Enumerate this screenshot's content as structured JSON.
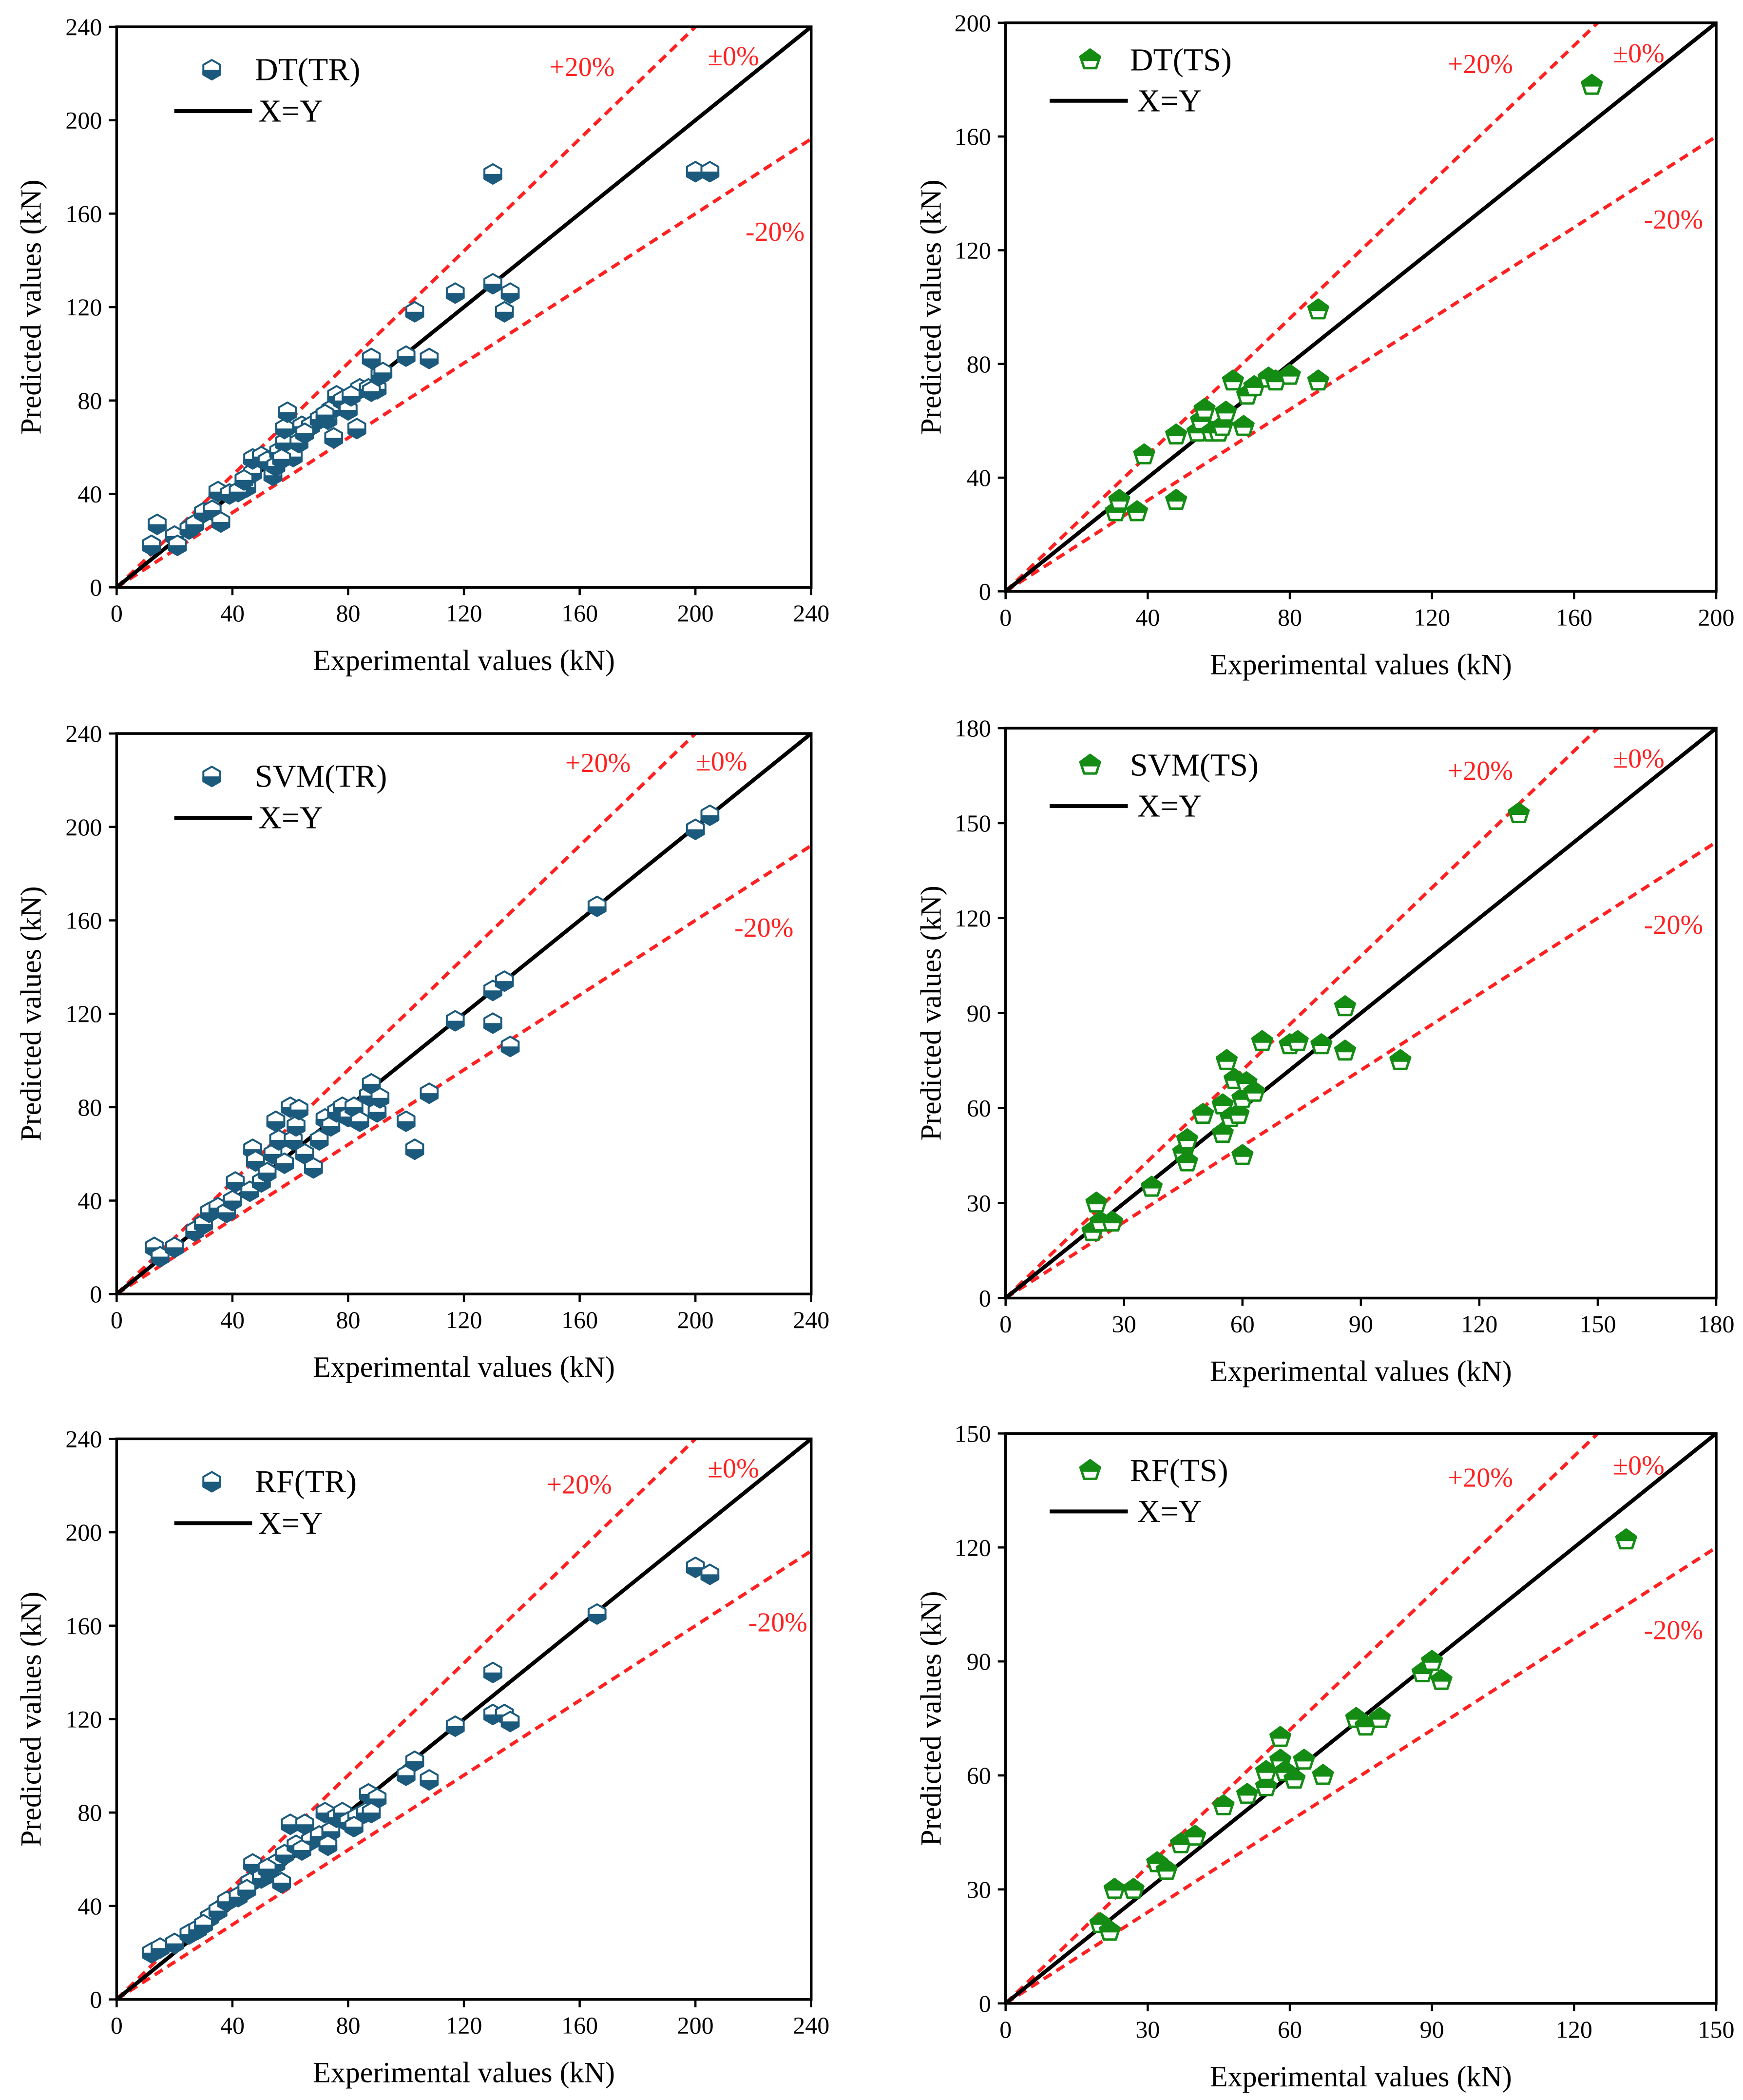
{
  "chart_data": [
    {
      "type": "scatter",
      "series": [
        {
          "name": "DT(TR)",
          "marker": "half-filled-hexagon",
          "color": "#1c5a7d",
          "x": [
            12,
            14,
            20,
            21,
            25,
            27,
            30,
            33,
            35,
            36,
            39,
            45,
            47,
            47,
            50,
            52,
            54,
            56,
            58,
            58,
            59,
            61,
            63,
            64,
            67,
            70,
            73,
            74,
            75,
            76,
            78,
            80,
            83,
            84,
            87,
            88,
            90,
            91,
            100,
            103,
            108,
            117,
            130,
            130,
            134,
            136,
            200,
            205,
            42,
            44,
            55,
            57,
            65,
            72,
            81,
            88,
            92
          ],
          "y": [
            18,
            27,
            22,
            18,
            25,
            27,
            32,
            33,
            41,
            28,
            40,
            43,
            49,
            55,
            56,
            54,
            48,
            58,
            62,
            68,
            75,
            56,
            62,
            69,
            69,
            72,
            72,
            76,
            64,
            82,
            80,
            76,
            68,
            85,
            85,
            98,
            85,
            91,
            99,
            118,
            98,
            126,
            177,
            130,
            118,
            126,
            178,
            178,
            41,
            46,
            52,
            55,
            66,
            74,
            82,
            84,
            92
          ]
        }
      ],
      "reference_lines": [
        {
          "label": "+20%",
          "slope": 1.2,
          "color": "#ff2121",
          "style": "dashed"
        },
        {
          "label": "±0%",
          "slope": 1.0,
          "color": "#ff2121",
          "style": "dashed"
        },
        {
          "label": "-20%",
          "slope": 0.8,
          "color": "#ff2121",
          "style": "dashed"
        }
      ],
      "identity_line": {
        "label": "X=Y",
        "slope": 1.0,
        "color": "#000000",
        "style": "solid"
      },
      "xlabel": "Experimental values (kN)",
      "ylabel": "Predicted values (kN)",
      "xlim": [
        0,
        240
      ],
      "ylim": [
        0,
        240
      ],
      "xticks": [
        0,
        40,
        80,
        120,
        160,
        200,
        240
      ],
      "yticks": [
        0,
        40,
        80,
        120,
        160,
        200,
        240
      ],
      "grid": false,
      "legend": "top-left"
    },
    {
      "type": "scatter",
      "series": [
        {
          "name": "DT(TS)",
          "marker": "half-filled-pentagon",
          "color": "#148c14",
          "x": [
            31,
            32,
            37,
            39,
            48,
            48,
            54,
            55,
            56,
            58,
            60,
            61,
            62,
            64,
            67,
            68,
            70,
            74,
            76,
            80,
            88,
            88,
            165
          ],
          "y": [
            28,
            32,
            28,
            48,
            32,
            55,
            56,
            60,
            64,
            56,
            56,
            58,
            63,
            74,
            58,
            69,
            72,
            75,
            74,
            76,
            99,
            74,
            178
          ]
        }
      ],
      "reference_lines": [
        {
          "label": "+20%",
          "slope": 1.2,
          "color": "#ff2121",
          "style": "dashed"
        },
        {
          "label": "±0%",
          "slope": 1.0,
          "color": "#ff2121",
          "style": "dashed"
        },
        {
          "label": "-20%",
          "slope": 0.8,
          "color": "#ff2121",
          "style": "dashed"
        }
      ],
      "identity_line": {
        "label": "X=Y",
        "slope": 1.0,
        "color": "#000000",
        "style": "solid"
      },
      "xlabel": "Experimental values (kN)",
      "ylabel": "Predicted values (kN)",
      "xlim": [
        0,
        200
      ],
      "ylim": [
        0,
        200
      ],
      "xticks": [
        0,
        40,
        80,
        120,
        160,
        200
      ],
      "yticks": [
        0,
        40,
        80,
        120,
        160,
        200
      ],
      "grid": false,
      "legend": "top-left"
    },
    {
      "type": "scatter",
      "series": [
        {
          "name": "SVM(TR)",
          "marker": "half-filled-hexagon",
          "color": "#1c5a7d",
          "x": [
            13,
            15,
            20,
            27,
            30,
            32,
            35,
            38,
            40,
            41,
            46,
            47,
            48,
            50,
            52,
            54,
            55,
            56,
            58,
            60,
            61,
            62,
            63,
            65,
            68,
            70,
            72,
            74,
            76,
            78,
            80,
            82,
            84,
            87,
            88,
            90,
            91,
            100,
            103,
            108,
            117,
            130,
            130,
            134,
            136,
            166,
            200,
            205
          ],
          "y": [
            20,
            16,
            20,
            27,
            30,
            35,
            37,
            35,
            40,
            48,
            44,
            62,
            57,
            48,
            52,
            60,
            74,
            66,
            56,
            80,
            66,
            72,
            79,
            60,
            54,
            66,
            75,
            72,
            78,
            80,
            76,
            80,
            74,
            85,
            90,
            78,
            84,
            74,
            62,
            86,
            117,
            130,
            116,
            134,
            106,
            166,
            199,
            205
          ]
        }
      ],
      "reference_lines": [
        {
          "label": "+20%",
          "slope": 1.2,
          "color": "#ff2121",
          "style": "dashed"
        },
        {
          "label": "±0%",
          "slope": 1.0,
          "color": "#ff2121",
          "style": "dashed"
        },
        {
          "label": "-20%",
          "slope": 0.8,
          "color": "#ff2121",
          "style": "dashed"
        }
      ],
      "identity_line": {
        "label": "X=Y",
        "slope": 1.0,
        "color": "#000000",
        "style": "solid"
      },
      "xlabel": "Experimental values (kN)",
      "ylabel": "Predicted values (kN)",
      "xlim": [
        0,
        240
      ],
      "ylim": [
        0,
        240
      ],
      "xticks": [
        0,
        40,
        80,
        120,
        160,
        200,
        240
      ],
      "yticks": [
        0,
        40,
        80,
        120,
        160,
        200,
        240
      ],
      "grid": false,
      "legend": "top-left"
    },
    {
      "type": "scatter",
      "series": [
        {
          "name": "SVM(TS)",
          "marker": "half-filled-pentagon",
          "color": "#148c14",
          "x": [
            22,
            23,
            24,
            27,
            37,
            45,
            46,
            46,
            50,
            55,
            55,
            56,
            57,
            58,
            59,
            60,
            60,
            61,
            63,
            65,
            72,
            74,
            80,
            86,
            86,
            100,
            130
          ],
          "y": [
            21,
            30,
            24,
            24,
            35,
            46,
            43,
            50,
            58,
            52,
            61,
            75,
            57,
            69,
            58,
            45,
            63,
            68,
            65,
            81,
            80,
            81,
            80,
            78,
            92,
            75,
            153
          ]
        }
      ],
      "reference_lines": [
        {
          "label": "+20%",
          "slope": 1.2,
          "color": "#ff2121",
          "style": "dashed"
        },
        {
          "label": "±0%",
          "slope": 1.0,
          "color": "#ff2121",
          "style": "dashed"
        },
        {
          "label": "-20%",
          "slope": 0.8,
          "color": "#ff2121",
          "style": "dashed"
        }
      ],
      "identity_line": {
        "label": "X=Y",
        "slope": 1.0,
        "color": "#000000",
        "style": "solid"
      },
      "xlabel": "Experimental values (kN)",
      "ylabel": "Predicted values (kN)",
      "xlim": [
        0,
        180
      ],
      "ylim": [
        0,
        180
      ],
      "xticks": [
        0,
        30,
        60,
        90,
        120,
        150,
        180
      ],
      "yticks": [
        0,
        30,
        60,
        90,
        120,
        150,
        180
      ],
      "grid": false,
      "legend": "top-left"
    },
    {
      "type": "scatter",
      "series": [
        {
          "name": "RF(TR)",
          "marker": "half-filled-hexagon",
          "color": "#1c5a7d",
          "x": [
            12,
            15,
            20,
            25,
            28,
            32,
            35,
            38,
            42,
            46,
            47,
            50,
            53,
            55,
            58,
            60,
            62,
            65,
            67,
            70,
            72,
            74,
            76,
            78,
            80,
            83,
            86,
            87,
            90,
            100,
            103,
            108,
            117,
            130,
            130,
            134,
            136,
            166,
            200,
            205,
            30,
            45,
            52,
            57,
            64,
            73,
            82,
            88
          ],
          "y": [
            20,
            22,
            24,
            28,
            30,
            35,
            38,
            42,
            44,
            50,
            58,
            52,
            54,
            58,
            62,
            75,
            66,
            75,
            68,
            70,
            80,
            72,
            78,
            80,
            76,
            78,
            80,
            88,
            86,
            96,
            102,
            94,
            117,
            140,
            122,
            122,
            119,
            165,
            185,
            182,
            32,
            47,
            56,
            50,
            64,
            66,
            74,
            80
          ]
        }
      ],
      "reference_lines": [
        {
          "label": "+20%",
          "slope": 1.2,
          "color": "#ff2121",
          "style": "dashed"
        },
        {
          "label": "±0%",
          "slope": 1.0,
          "color": "#ff2121",
          "style": "dashed"
        },
        {
          "label": "-20%",
          "slope": 0.8,
          "color": "#ff2121",
          "style": "dashed"
        }
      ],
      "identity_line": {
        "label": "X=Y",
        "slope": 1.0,
        "color": "#000000",
        "style": "solid"
      },
      "xlabel": "Experimental values (kN)",
      "ylabel": "Predicted values (kN)",
      "xlim": [
        0,
        240
      ],
      "ylim": [
        0,
        240
      ],
      "xticks": [
        0,
        40,
        80,
        120,
        160,
        200,
        240
      ],
      "yticks": [
        0,
        40,
        80,
        120,
        160,
        200,
        240
      ],
      "grid": false,
      "legend": "top-left"
    },
    {
      "type": "scatter",
      "series": [
        {
          "name": "RF(TS)",
          "marker": "half-filled-pentagon",
          "color": "#148c14",
          "x": [
            20,
            22,
            23,
            27,
            32,
            34,
            37,
            40,
            46,
            51,
            55,
            55,
            58,
            58,
            59,
            61,
            63,
            67,
            74,
            76,
            79,
            88,
            90,
            92,
            131
          ],
          "y": [
            21,
            19,
            30,
            30,
            37,
            35,
            42,
            44,
            52,
            55,
            57,
            61,
            70,
            64,
            61,
            59,
            64,
            60,
            75,
            73,
            75,
            87,
            90,
            85,
            122
          ]
        }
      ],
      "reference_lines": [
        {
          "label": "+20%",
          "slope": 1.2,
          "color": "#ff2121",
          "style": "dashed"
        },
        {
          "label": "±0%",
          "slope": 1.0,
          "color": "#ff2121",
          "style": "dashed"
        },
        {
          "label": "-20%",
          "slope": 0.8,
          "color": "#ff2121",
          "style": "dashed"
        }
      ],
      "identity_line": {
        "label": "X=Y",
        "slope": 1.0,
        "color": "#000000",
        "style": "solid"
      },
      "xlabel": "Experimental values (kN)",
      "ylabel": "Predicted values (kN)",
      "xlim": [
        0,
        150
      ],
      "ylim": [
        0,
        150
      ],
      "xticks": [
        0,
        30,
        60,
        90,
        120,
        150
      ],
      "yticks": [
        0,
        30,
        60,
        90,
        120,
        150
      ],
      "grid": false,
      "legend": "top-left"
    }
  ]
}
